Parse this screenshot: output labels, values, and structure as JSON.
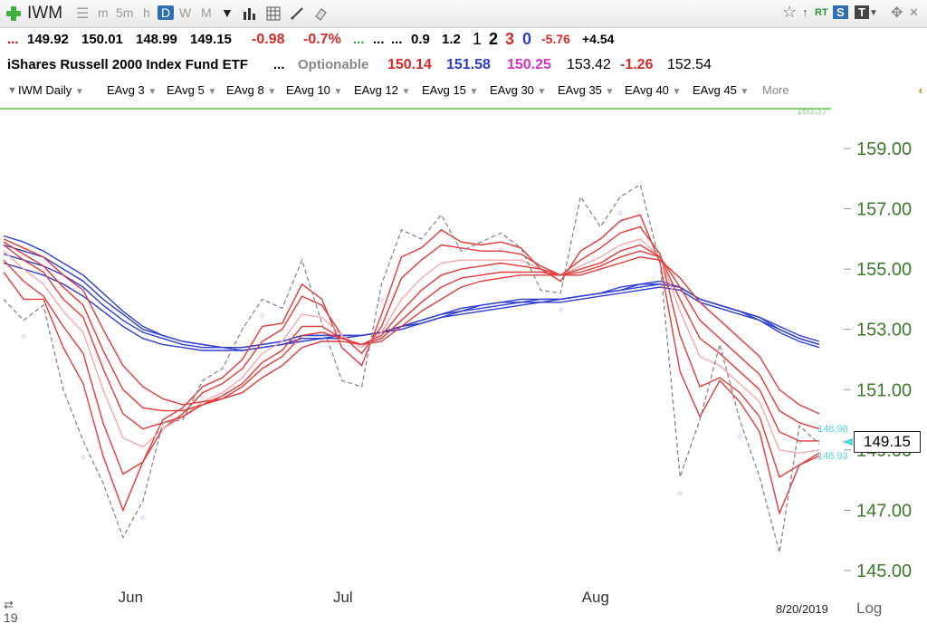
{
  "toolbar": {
    "symbol": "IWM",
    "timeframes": [
      "m",
      "5m",
      "h",
      "D",
      "W",
      "M"
    ],
    "active_timeframe": "D",
    "right_labels": {
      "rt": "RT",
      "s": "S",
      "t": "T"
    }
  },
  "quote_row1": {
    "dots": "...",
    "open": "149.92",
    "high": "150.01",
    "low": "148.99",
    "close": "149.15",
    "change": "-0.98",
    "change_pct": "-0.7%",
    "green_dots": "...",
    "dots2": "...",
    "dots3": "...",
    "v1": "0.9",
    "v2": "1.2",
    "n1": "1",
    "n2": "2",
    "n3": "3",
    "n4": "0",
    "v3": "-5.76",
    "v4": "+4.54"
  },
  "quote_row2": {
    "name": "iShares Russell 2000 Index Fund ETF",
    "dots": "...",
    "optionable": "Optionable",
    "p1": "150.14",
    "p2": "151.58",
    "p3": "150.25",
    "p4": "153.42",
    "p5": "-1.26",
    "p6": "152.54"
  },
  "ma_bar": {
    "items": [
      {
        "label": "IWM Daily",
        "color": "#4a79b8"
      },
      {
        "label": "EAvg 3",
        "color": "#e03030"
      },
      {
        "label": "EAvg 5",
        "color": "#e03030"
      },
      {
        "label": "EAvg 8",
        "color": "#f0a0a0"
      },
      {
        "label": "EAvg 10",
        "color": "#e03030"
      },
      {
        "label": "EAvg 12",
        "color": "#e03030"
      },
      {
        "label": "EAvg 15",
        "color": "#e03030"
      },
      {
        "label": "EAvg 30",
        "color": "#2f3fd0"
      },
      {
        "label": "EAvg 35",
        "color": "#2f3fd0"
      },
      {
        "label": "EAvg 40",
        "color": "#2f3fd0"
      },
      {
        "label": "EAvg 45",
        "color": "#2f3fd0"
      }
    ],
    "more": "More"
  },
  "chart_data": {
    "type": "line",
    "y_ticks": [
      "159.00",
      "157.00",
      "155.00",
      "153.00",
      "151.00",
      "149.00",
      "147.00",
      "145.00"
    ],
    "ylim": [
      144.5,
      160.3
    ],
    "x_labels": [
      "Jun",
      "Jul",
      "Aug"
    ],
    "date_label": "8/20/2019",
    "axis_scale_label": "Log",
    "last_price": "149.15",
    "price_tags": [
      "148.98",
      "148.93"
    ],
    "top_partial_tag": "160.37",
    "colors": {
      "price": "#888888",
      "ema_fast": "#e03a3a",
      "ema_mid": "#f2a8a8",
      "ema_slow": "#2f3fd0",
      "axis_text": "#3a7a2a",
      "tag": "#4fd3e0"
    },
    "series": [
      {
        "type": "price",
        "values": [
          154.0,
          153.3,
          153.8,
          151.0,
          149.3,
          147.9,
          146.1,
          147.3,
          149.9,
          150.0,
          151.3,
          151.7,
          153.0,
          154.0,
          153.7,
          155.3,
          153.2,
          151.3,
          151.1,
          154.5,
          156.3,
          156.0,
          156.8,
          155.6,
          155.9,
          156.2,
          155.7,
          154.3,
          154.2,
          157.4,
          156.4,
          157.4,
          157.8,
          155.2,
          148.1,
          150.0,
          152.5,
          150.0,
          148.1,
          145.6,
          149.8,
          149.2
        ]
      },
      {
        "values": [
          154.9,
          154.0,
          154.0,
          152.4,
          151.2,
          148.8,
          147.0,
          148.6,
          150.0,
          150.4,
          151.1,
          151.4,
          152.0,
          153.1,
          153.2,
          154.5,
          154.0,
          152.4,
          151.8,
          153.5,
          155.4,
          155.7,
          156.3,
          155.9,
          155.8,
          155.9,
          155.7,
          155.0,
          154.6,
          155.6,
          156.0,
          156.6,
          156.8,
          155.2,
          151.6,
          150.1,
          151.3,
          150.6,
          149.6,
          146.9,
          148.5,
          148.9
        ]
      },
      {
        "values": [
          155.3,
          154.6,
          154.1,
          153.1,
          152.2,
          149.9,
          148.2,
          148.6,
          149.7,
          150.2,
          150.9,
          151.2,
          151.7,
          152.6,
          153.0,
          154.1,
          153.8,
          152.8,
          152.2,
          153.1,
          154.7,
          155.3,
          155.8,
          155.7,
          155.6,
          155.6,
          155.5,
          155.1,
          154.8,
          155.3,
          155.7,
          156.2,
          156.4,
          155.5,
          152.8,
          151.1,
          151.4,
          150.9,
          150.1,
          148.1,
          148.5,
          148.8
        ]
      },
      {
        "values": [
          155.6,
          155.0,
          154.5,
          153.6,
          152.9,
          151.0,
          149.4,
          149.1,
          149.7,
          150.1,
          150.6,
          150.9,
          151.4,
          152.2,
          152.6,
          153.5,
          153.4,
          152.8,
          152.4,
          152.9,
          154.0,
          154.7,
          155.2,
          155.3,
          155.3,
          155.3,
          155.3,
          155.0,
          154.8,
          155.1,
          155.4,
          155.8,
          156.0,
          155.4,
          153.6,
          152.1,
          151.8,
          151.2,
          150.6,
          149.0,
          148.9,
          149.0
        ]
      },
      {
        "values": [
          155.8,
          155.3,
          154.9,
          154.0,
          153.4,
          151.7,
          150.2,
          149.7,
          149.9,
          150.1,
          150.5,
          150.8,
          151.2,
          151.9,
          152.3,
          153.1,
          153.1,
          152.7,
          152.5,
          152.8,
          153.6,
          154.3,
          154.8,
          155.0,
          155.1,
          155.2,
          155.1,
          155.0,
          154.8,
          155.0,
          155.2,
          155.6,
          155.8,
          155.4,
          154.0,
          152.7,
          152.2,
          151.6,
          151.0,
          149.6,
          149.3,
          149.3
        ]
      },
      {
        "values": [
          155.9,
          155.5,
          155.1,
          154.4,
          153.8,
          152.3,
          151.0,
          150.4,
          150.3,
          150.3,
          150.5,
          150.7,
          151.1,
          151.7,
          152.1,
          152.8,
          152.9,
          152.7,
          152.5,
          152.7,
          153.3,
          153.9,
          154.4,
          154.7,
          154.8,
          154.9,
          154.9,
          154.9,
          154.8,
          154.9,
          155.1,
          155.4,
          155.6,
          155.4,
          154.4,
          153.3,
          152.7,
          152.1,
          151.5,
          150.3,
          149.9,
          149.7
        ]
      },
      {
        "values": [
          156.0,
          155.7,
          155.4,
          154.8,
          154.3,
          153.0,
          151.8,
          151.1,
          150.7,
          150.5,
          150.6,
          150.7,
          150.9,
          151.4,
          151.8,
          152.4,
          152.6,
          152.6,
          152.5,
          152.6,
          153.1,
          153.6,
          154.0,
          154.4,
          154.6,
          154.7,
          154.8,
          154.8,
          154.8,
          154.8,
          155.0,
          155.2,
          155.4,
          155.3,
          154.7,
          153.9,
          153.3,
          152.7,
          152.1,
          151.0,
          150.5,
          150.2
        ]
      },
      {
        "values": [
          156.1,
          155.9,
          155.6,
          155.2,
          154.8,
          154.2,
          153.6,
          153.1,
          152.8,
          152.6,
          152.5,
          152.4,
          152.4,
          152.5,
          152.6,
          152.8,
          152.8,
          152.8,
          152.8,
          152.9,
          153.1,
          153.3,
          153.5,
          153.7,
          153.8,
          153.9,
          154.0,
          154.0,
          154.0,
          154.1,
          154.2,
          154.4,
          154.5,
          154.6,
          154.4,
          154.0,
          153.8,
          153.6,
          153.3,
          152.9,
          152.6,
          152.4
        ]
      },
      {
        "values": [
          155.8,
          155.6,
          155.4,
          155.0,
          154.6,
          154.0,
          153.5,
          153.0,
          152.8,
          152.6,
          152.5,
          152.4,
          152.4,
          152.5,
          152.6,
          152.8,
          152.8,
          152.8,
          152.8,
          152.9,
          153.1,
          153.3,
          153.5,
          153.6,
          153.8,
          153.9,
          153.9,
          154.0,
          154.0,
          154.1,
          154.2,
          154.3,
          154.5,
          154.5,
          154.4,
          154.0,
          153.8,
          153.6,
          153.4,
          153.0,
          152.7,
          152.5
        ]
      },
      {
        "values": [
          155.5,
          155.3,
          155.1,
          154.8,
          154.4,
          153.8,
          153.3,
          152.9,
          152.7,
          152.5,
          152.4,
          152.4,
          152.3,
          152.4,
          152.5,
          152.7,
          152.7,
          152.8,
          152.8,
          152.9,
          153.1,
          153.2,
          153.4,
          153.6,
          153.7,
          153.8,
          153.9,
          153.9,
          154.0,
          154.1,
          154.2,
          154.3,
          154.4,
          154.5,
          154.4,
          154.0,
          153.8,
          153.6,
          153.4,
          153.1,
          152.8,
          152.6
        ]
      },
      {
        "values": [
          155.2,
          155.0,
          154.8,
          154.5,
          154.1,
          153.6,
          153.1,
          152.7,
          152.5,
          152.4,
          152.3,
          152.3,
          152.3,
          152.4,
          152.5,
          152.6,
          152.7,
          152.7,
          152.8,
          152.9,
          153.0,
          153.2,
          153.4,
          153.5,
          153.6,
          153.7,
          153.8,
          153.9,
          153.9,
          154.0,
          154.1,
          154.2,
          154.3,
          154.4,
          154.3,
          153.9,
          153.7,
          153.5,
          153.3,
          153.0,
          152.7,
          152.5
        ]
      }
    ]
  }
}
